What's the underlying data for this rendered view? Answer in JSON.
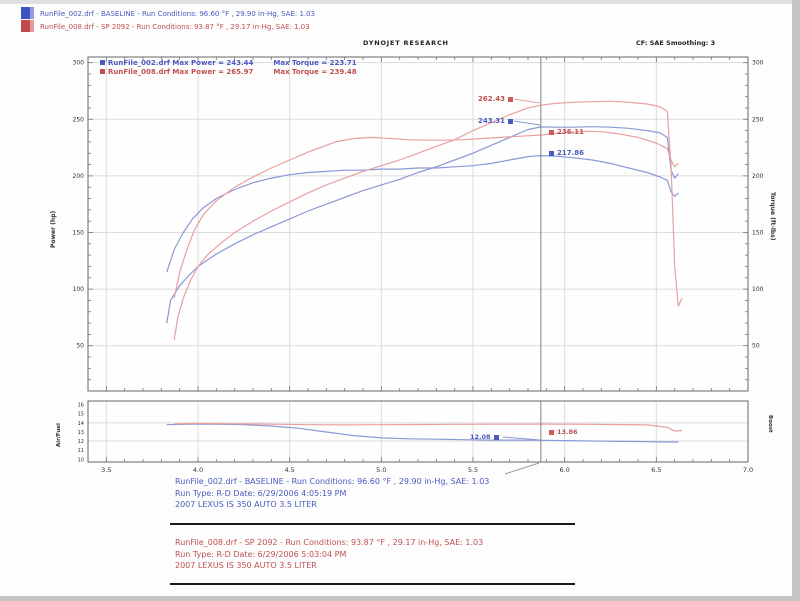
{
  "header": {
    "run1": "RunFile_002.drf - BASELINE  -  Run Conditions: 96.60 °F , 29.90 in-Hg, SAE: 1.03",
    "run2": "RunFile_008.drf - SP 2092  -  Run Conditions: 93.87 °F , 29.17 in-Hg, SAE: 1.03",
    "brand": "DYNOJET RESEARCH",
    "smoothing": "CF: SAE   Smoothing: 3"
  },
  "legend": {
    "run1_left": "RunFile_002.drf Max Power = 243.44",
    "run1_right": "Max Torque = 223.71",
    "run2_left": "RunFile_008.drf Max Power = 265.97",
    "run2_right": "Max Torque = 239.48"
  },
  "axes": {
    "power": "Power (hp)",
    "torque": "Torque (ft-lbs)",
    "airfuel": "Air/Fuel",
    "boost": "Boost"
  },
  "point_labels": {
    "red_power": "262.43",
    "blue_power": "243.31",
    "red_torque": "236.11",
    "blue_torque": "217.86",
    "blue_afr": "12.08",
    "red_afr": "13.86"
  },
  "footer": {
    "run1": {
      "line1": "RunFile_002.drf - BASELINE  -  Run Conditions: 96.60 °F , 29.90 in-Hg, SAE: 1.03",
      "line2": "Run Type: R-D Date: 6/29/2006 4:05:19 PM",
      "line3": "2007 LEXUS IS 350 AUTO 3.5 LITER"
    },
    "run2": {
      "line1": "RunFile_008.drf - SP 2092 - Run Conditions: 93.87 °F , 29.17 in-Hg, SAE: 1.03",
      "line2": "Run Type: R-D Date: 6/29/2006 5:03:04 PM",
      "line3": "2007 LEXUS IS 350 AUTO 3.5 LITER"
    }
  },
  "colors": {
    "run1_text": "#4a5abf",
    "run1_curve": "#8a99d6",
    "run2_text": "#c05050",
    "run2_curve": "#e9a0a0",
    "grid": "#dcdcdc",
    "border": "#666666",
    "cursor": "#808080"
  },
  "chart_data": [
    {
      "type": "line",
      "title": "Dyno run comparison - Power and Torque vs RPM",
      "xlabel": "",
      "ylabel_left": "Power (hp)",
      "ylabel_right": "Torque (ft-lbs)",
      "xlim": [
        3.4,
        7.0
      ],
      "ylim": [
        10,
        305
      ],
      "xticks": [
        3.5,
        4.0,
        4.5,
        5.0,
        5.5,
        6.0,
        6.5,
        7.0
      ],
      "yticks": [
        50,
        100,
        150,
        200,
        250,
        300
      ],
      "grid_yticks": [
        50,
        100,
        150,
        200,
        250,
        300
      ],
      "grid": true,
      "legend_position": "top-left",
      "cursor_x": 5.87,
      "max_values": {
        "run1_power": 243.44,
        "run1_torque": 223.71,
        "run2_power": 265.97,
        "run2_torque": 239.48
      },
      "cursor_values": {
        "run1_power": 243.31,
        "run1_torque": 217.86,
        "run2_power": 262.43,
        "run2_torque": 236.11
      },
      "series": [
        {
          "name": "RunFile_002.drf Power (hp)",
          "color_key": "run1_curve",
          "points": [
            [
              3.83,
              70
            ],
            [
              3.85,
              90
            ],
            [
              3.9,
              103
            ],
            [
              3.95,
              112
            ],
            [
              4.0,
              120
            ],
            [
              4.1,
              131
            ],
            [
              4.2,
              140
            ],
            [
              4.3,
              148
            ],
            [
              4.4,
              155
            ],
            [
              4.5,
              162
            ],
            [
              4.6,
              169
            ],
            [
              4.7,
              175
            ],
            [
              4.8,
              181
            ],
            [
              4.9,
              187
            ],
            [
              5.0,
              192
            ],
            [
              5.1,
              197
            ],
            [
              5.2,
              203
            ],
            [
              5.3,
              208
            ],
            [
              5.4,
              214
            ],
            [
              5.5,
              220
            ],
            [
              5.6,
              227
            ],
            [
              5.7,
              234
            ],
            [
              5.8,
              241
            ],
            [
              5.87,
              243.3
            ],
            [
              5.95,
              243
            ],
            [
              6.05,
              243
            ],
            [
              6.15,
              243.4
            ],
            [
              6.25,
              243
            ],
            [
              6.35,
              242
            ],
            [
              6.45,
              240
            ],
            [
              6.52,
              238
            ],
            [
              6.56,
              234
            ],
            [
              6.58,
              205
            ],
            [
              6.6,
              198
            ],
            [
              6.62,
              202
            ]
          ]
        },
        {
          "name": "RunFile_002.drf Torque (ft-lbs)",
          "color_key": "run1_curve",
          "points": [
            [
              3.83,
              115
            ],
            [
              3.87,
              135
            ],
            [
              3.92,
              150
            ],
            [
              3.97,
              162
            ],
            [
              4.03,
              172
            ],
            [
              4.1,
              180
            ],
            [
              4.2,
              188
            ],
            [
              4.3,
              194
            ],
            [
              4.4,
              198
            ],
            [
              4.5,
              201
            ],
            [
              4.6,
              203
            ],
            [
              4.7,
              204
            ],
            [
              4.8,
              205
            ],
            [
              4.9,
              205
            ],
            [
              5.0,
              206
            ],
            [
              5.1,
              206
            ],
            [
              5.2,
              207
            ],
            [
              5.3,
              207
            ],
            [
              5.4,
              208
            ],
            [
              5.5,
              209
            ],
            [
              5.6,
              211
            ],
            [
              5.7,
              214
            ],
            [
              5.8,
              217
            ],
            [
              5.87,
              217.9
            ],
            [
              5.95,
              217.5
            ],
            [
              6.05,
              216
            ],
            [
              6.15,
              214
            ],
            [
              6.25,
              211
            ],
            [
              6.35,
              207
            ],
            [
              6.45,
              203
            ],
            [
              6.52,
              199
            ],
            [
              6.56,
              196
            ],
            [
              6.58,
              186
            ],
            [
              6.6,
              182
            ],
            [
              6.62,
              185
            ]
          ]
        },
        {
          "name": "RunFile_008.drf Power (hp)",
          "color_key": "run2_curve",
          "points": [
            [
              3.87,
              55
            ],
            [
              3.89,
              75
            ],
            [
              3.92,
              92
            ],
            [
              3.96,
              108
            ],
            [
              4.0,
              120
            ],
            [
              4.05,
              130
            ],
            [
              4.12,
              140
            ],
            [
              4.2,
              150
            ],
            [
              4.3,
              160
            ],
            [
              4.4,
              169
            ],
            [
              4.5,
              177
            ],
            [
              4.6,
              185
            ],
            [
              4.7,
              192
            ],
            [
              4.8,
              198
            ],
            [
              4.9,
              204
            ],
            [
              5.0,
              209
            ],
            [
              5.1,
              214
            ],
            [
              5.2,
              220
            ],
            [
              5.3,
              226
            ],
            [
              5.4,
              232
            ],
            [
              5.5,
              240
            ],
            [
              5.6,
              247
            ],
            [
              5.7,
              254
            ],
            [
              5.8,
              260
            ],
            [
              5.87,
              262.4
            ],
            [
              5.95,
              264
            ],
            [
              6.05,
              265
            ],
            [
              6.15,
              265.5
            ],
            [
              6.25,
              266
            ],
            [
              6.35,
              265
            ],
            [
              6.45,
              263.5
            ],
            [
              6.52,
              261
            ],
            [
              6.56,
              257
            ],
            [
              6.58,
              210
            ],
            [
              6.6,
              120
            ],
            [
              6.62,
              85
            ],
            [
              6.64,
              92
            ]
          ]
        },
        {
          "name": "RunFile_008.drf Torque (ft-lbs)",
          "color_key": "run2_curve",
          "points": [
            [
              3.87,
              92
            ],
            [
              3.9,
              115
            ],
            [
              3.94,
              135
            ],
            [
              3.98,
              152
            ],
            [
              4.03,
              166
            ],
            [
              4.1,
              178
            ],
            [
              4.2,
              190
            ],
            [
              4.3,
              199
            ],
            [
              4.4,
              207
            ],
            [
              4.5,
              214
            ],
            [
              4.6,
              221
            ],
            [
              4.7,
              227
            ],
            [
              4.75,
              230
            ],
            [
              4.85,
              233
            ],
            [
              4.95,
              234
            ],
            [
              5.05,
              233
            ],
            [
              5.15,
              232
            ],
            [
              5.25,
              231.5
            ],
            [
              5.35,
              231.5
            ],
            [
              5.45,
              232
            ],
            [
              5.55,
              233
            ],
            [
              5.65,
              234
            ],
            [
              5.75,
              235
            ],
            [
              5.87,
              236.1
            ],
            [
              5.95,
              237.5
            ],
            [
              6.05,
              238.8
            ],
            [
              6.12,
              239.5
            ],
            [
              6.2,
              239
            ],
            [
              6.3,
              237
            ],
            [
              6.4,
              234
            ],
            [
              6.5,
              229
            ],
            [
              6.56,
              224
            ],
            [
              6.58,
              214
            ],
            [
              6.6,
              208
            ],
            [
              6.62,
              211
            ]
          ]
        }
      ]
    },
    {
      "type": "line",
      "title": "Air/Fuel ratio vs RPM",
      "xlabel": "",
      "ylabel_left": "Air/Fuel",
      "ylabel_right": "Boost",
      "xlim": [
        3.4,
        7.0
      ],
      "ylim": [
        9.7,
        16.4
      ],
      "xticks": [
        3.5,
        4.0,
        4.5,
        5.0,
        5.5,
        6.0,
        6.5,
        7.0
      ],
      "yticks": [
        10,
        11,
        12,
        13,
        14,
        15,
        16
      ],
      "grid_yticks": [
        12,
        14
      ],
      "grid": true,
      "cursor_x": 5.87,
      "cursor_values": {
        "run1_afr": 12.08,
        "run2_afr": 13.86
      },
      "series": [
        {
          "name": "RunFile_002.drf Air/Fuel",
          "color_key": "run1_curve",
          "points": [
            [
              3.83,
              13.8
            ],
            [
              3.95,
              13.85
            ],
            [
              4.1,
              13.85
            ],
            [
              4.25,
              13.8
            ],
            [
              4.4,
              13.65
            ],
            [
              4.55,
              13.4
            ],
            [
              4.7,
              13.0
            ],
            [
              4.85,
              12.6
            ],
            [
              5.0,
              12.35
            ],
            [
              5.15,
              12.25
            ],
            [
              5.3,
              12.2
            ],
            [
              5.45,
              12.15
            ],
            [
              5.6,
              12.1
            ],
            [
              5.75,
              12.1
            ],
            [
              5.87,
              12.08
            ],
            [
              6.0,
              12.05
            ],
            [
              6.2,
              12.0
            ],
            [
              6.4,
              11.95
            ],
            [
              6.55,
              11.9
            ],
            [
              6.62,
              11.9
            ]
          ]
        },
        {
          "name": "RunFile_008.drf Air/Fuel",
          "color_key": "run2_curve",
          "points": [
            [
              3.87,
              13.9
            ],
            [
              4.0,
              13.95
            ],
            [
              4.2,
              13.9
            ],
            [
              4.4,
              13.85
            ],
            [
              4.6,
              13.8
            ],
            [
              4.8,
              13.78
            ],
            [
              5.0,
              13.8
            ],
            [
              5.2,
              13.82
            ],
            [
              5.4,
              13.84
            ],
            [
              5.6,
              13.85
            ],
            [
              5.87,
              13.86
            ],
            [
              6.05,
              13.85
            ],
            [
              6.25,
              13.82
            ],
            [
              6.45,
              13.78
            ],
            [
              6.56,
              13.5
            ],
            [
              6.6,
              13.1
            ],
            [
              6.64,
              13.15
            ]
          ]
        }
      ]
    }
  ]
}
